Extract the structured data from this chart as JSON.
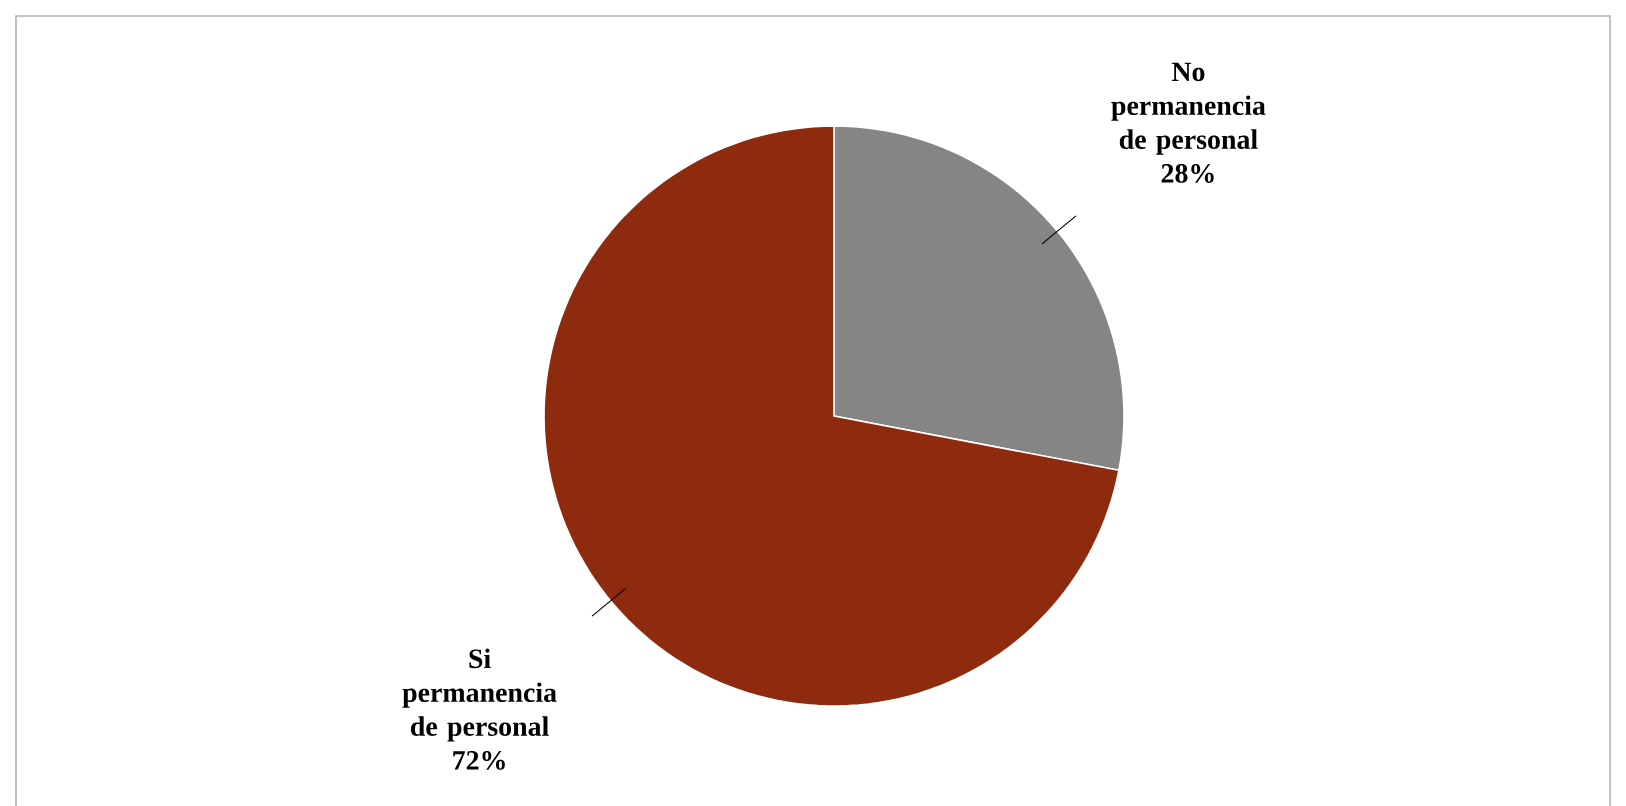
{
  "chart_data": {
    "type": "pie",
    "categories": [
      "No permanencia de personal",
      "Si permanencia de personal"
    ],
    "values": [
      28,
      72
    ],
    "value_labels": [
      "28%",
      "72%"
    ],
    "colors": [
      "#858585",
      "#8e2a0e"
    ]
  }
}
